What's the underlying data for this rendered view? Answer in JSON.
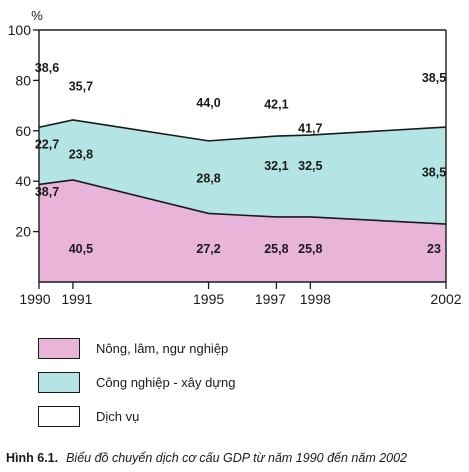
{
  "chart_data": {
    "type": "area",
    "stacked": true,
    "ylabel": "%",
    "ylim": [
      0,
      100
    ],
    "y_ticks": [
      20,
      40,
      60,
      80,
      100
    ],
    "x": [
      1990,
      1991,
      1995,
      1997,
      1998,
      2002
    ],
    "x_labels": [
      "1990",
      "1991",
      "1995",
      "1997",
      "1998",
      "2002"
    ],
    "series": [
      {
        "name": "Nông, lâm, ngư nghiệp",
        "values": [
          38.7,
          40.5,
          27.2,
          25.8,
          25.8,
          23
        ],
        "labels": [
          "38,7",
          "40,5",
          "27,2",
          "25,8",
          "25,8",
          "23"
        ],
        "color": "#e8b4d8"
      },
      {
        "name": "Công nghiệp - xây dựng",
        "values": [
          22.7,
          23.8,
          28.8,
          32.1,
          32.5,
          38.5
        ],
        "labels": [
          "22,7",
          "23,8",
          "28,8",
          "32,1",
          "32,5",
          "38,5"
        ],
        "color": "#b4e4e4"
      },
      {
        "name": "Dịch vụ",
        "values": [
          38.6,
          35.7,
          44.0,
          42.1,
          41.7,
          38.5
        ],
        "labels": [
          "38,6",
          "35,7",
          "44,0",
          "42,1",
          "41,7",
          "38,5"
        ],
        "color": "#ffffff"
      }
    ],
    "grid": false,
    "legend_position": "bottom"
  },
  "caption": {
    "label": "Hình 6.1.",
    "text": "Biểu đồ chuyển dịch cơ cấu GDP từ năm 1990 đến năm 2002"
  }
}
